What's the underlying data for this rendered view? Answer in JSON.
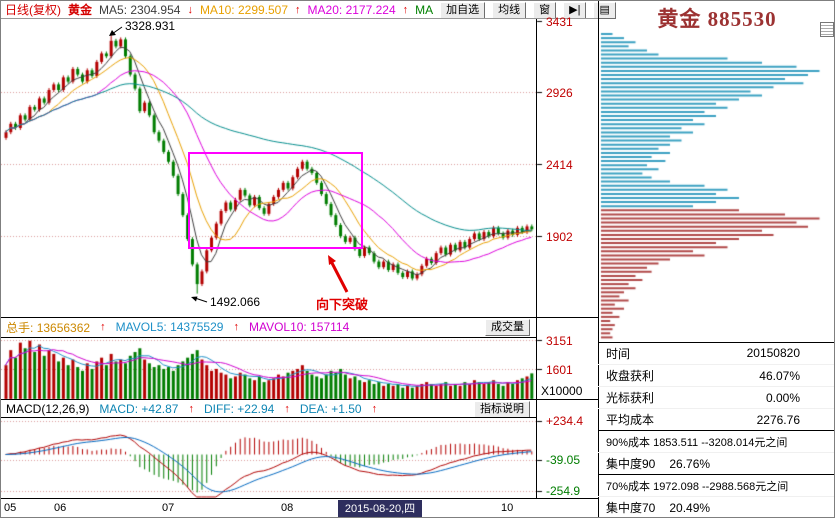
{
  "toolbar": {
    "period": "日线(复权)",
    "symbol": "黄金",
    "ma5_label": "MA5:",
    "ma5_value": "2304.954",
    "ma5_arrow": "↓",
    "ma10_label": "MA10:",
    "ma10_value": "2299.507",
    "ma10_arrow": "↑",
    "ma20_label": "MA20:",
    "ma20_value": "2177.224",
    "ma20_arrow": "↑",
    "ma_more": "MA",
    "btn_add": "加自选",
    "btn_ma": "均线",
    "btn_win": "窗",
    "btn_next": "▶|",
    "btn_grid": "▤"
  },
  "vol_header": {
    "zs_label": "总手:",
    "zs_value": "13656362",
    "zs_arrow": "↑",
    "mv5_label": "MAVOL5:",
    "mv5_value": "14375529",
    "mv5_arrow": "↑",
    "mv10_label": "MAVOL10:",
    "mv10_value": "157114",
    "pane_button": "成交量"
  },
  "macd_header": {
    "name": "MACD(12,26,9)",
    "m_label": "MACD:",
    "m_value": "+42.87",
    "m_arrow": "↑",
    "d_label": "DIFF:",
    "d_value": "+22.94",
    "d_arrow": "↑",
    "e_label": "DEA:",
    "e_value": "+1.50",
    "e_arrow": "↑",
    "help": "指标说明"
  },
  "axis": {
    "p1": "3431",
    "p2": "2926",
    "p3": "2414",
    "p4": "1902",
    "v1": "3151",
    "v2": "1601",
    "vunit": "X10000",
    "m1": "+234.4",
    "m2": "-39.05",
    "m3": "-254.9"
  },
  "xaxis": {
    "m05": "05",
    "m06": "06",
    "m07": "07",
    "m08": "08",
    "date": "2015-08-20,四",
    "m10": "10"
  },
  "annotations": {
    "peak": "3328.931",
    "trough": "1492.066",
    "break_text": "向下突破"
  },
  "right_panel": {
    "title": "黄金 885530",
    "rows": [
      {
        "label": "时间",
        "value": "20150820"
      },
      {
        "label": "收盘获利",
        "value": "46.07%"
      },
      {
        "label": "光标获利",
        "value": "0.00%"
      },
      {
        "label": "平均成本",
        "value": "2276.76"
      },
      {
        "label": "90%成本 1853.511 --3208.014元之间",
        "value": ""
      },
      {
        "label": "集中度90",
        "value": "26.76%"
      },
      {
        "label": "70%成本 1972.098 --2988.568元之间",
        "value": ""
      },
      {
        "label": "集中度70",
        "value": "20.49%"
      }
    ]
  },
  "chart_data": {
    "type": "candlestick",
    "title": "黄金 885530 日线(复权)",
    "x_months": [
      "05",
      "06",
      "07",
      "08",
      "09(2015-08-20)",
      "10"
    ],
    "price_axis": [
      3431,
      2926,
      2414,
      1902
    ],
    "vol_axis": [
      3151,
      1601
    ],
    "macd_axis": [
      234.4,
      -39.05,
      -254.9
    ],
    "first_open": 2600,
    "closes": [
      2640,
      2700,
      2670,
      2760,
      2730,
      2820,
      2800,
      2880,
      2850,
      2940,
      2980,
      2940,
      3030,
      3000,
      3090,
      3050,
      3000,
      3080,
      3040,
      3140,
      3200,
      3180,
      3290,
      3250,
      3300,
      3180,
      3050,
      2950,
      2790,
      2850,
      2760,
      2640,
      2580,
      2500,
      2430,
      2330,
      2200,
      2050,
      1880,
      1700,
      1560,
      1650,
      1800,
      1890,
      1990,
      2080,
      2140,
      2090,
      2160,
      2230,
      2190,
      2120,
      2180,
      2100,
      2060,
      2130,
      2180,
      2230,
      2280,
      2240,
      2320,
      2380,
      2430,
      2380,
      2350,
      2280,
      2200,
      2130,
      2050,
      1980,
      1900,
      1860,
      1890,
      1810,
      1760,
      1820,
      1780,
      1720,
      1680,
      1720,
      1660,
      1700,
      1640,
      1610,
      1650,
      1600,
      1630,
      1690,
      1740,
      1710,
      1780,
      1820,
      1770,
      1840,
      1800,
      1860,
      1820,
      1880,
      1920,
      1880,
      1930,
      1900,
      1960,
      1920,
      1890,
      1940,
      1910,
      1960,
      1930,
      1970,
      1950
    ],
    "volumes": [
      1800,
      2600,
      2200,
      3000,
      2700,
      3100,
      2500,
      2900,
      2300,
      2600,
      2400,
      2000,
      2200,
      1800,
      2100,
      1700,
      1500,
      1900,
      1600,
      2000,
      2200,
      1800,
      2400,
      2000,
      2100,
      1900,
      2300,
      2500,
      2700,
      2100,
      1900,
      1700,
      1800,
      1600,
      1700,
      1500,
      1800,
      2000,
      2200,
      2400,
      2600,
      2100,
      1800,
      1500,
      1600,
      1400,
      1300,
      1100,
      1200,
      1400,
      1300,
      1100,
      1000,
      1200,
      900,
      1000,
      1100,
      1300,
      1200,
      1400,
      1500,
      1600,
      1800,
      1500,
      1300,
      1200,
      1100,
      1300,
      1500,
      1400,
      1600,
      1300,
      1100,
      1200,
      1000,
      900,
      1000,
      800,
      900,
      700,
      800,
      700,
      800,
      600,
      700,
      600,
      700,
      800,
      900,
      800,
      700,
      800,
      900,
      700,
      800,
      700,
      900,
      800,
      1000,
      900,
      800,
      900,
      1000,
      800,
      700,
      900,
      800,
      1000,
      1100,
      1200,
      1365
    ],
    "peak_index": 22,
    "peak_high": 3328.931,
    "trough_index": 40,
    "trough_low": 1492.066,
    "ma_periods": [
      5,
      10,
      20,
      60
    ],
    "chip": {
      "split_index": 43,
      "rows": [
        0.05,
        0.1,
        0.15,
        0.12,
        0.2,
        0.25,
        0.55,
        0.7,
        0.85,
        0.95,
        0.9,
        0.8,
        0.88,
        0.75,
        0.65,
        0.7,
        0.6,
        0.5,
        0.55,
        0.45,
        0.5,
        0.4,
        0.45,
        0.35,
        0.4,
        0.3,
        0.35,
        0.3,
        0.25,
        0.3,
        0.22,
        0.28,
        0.2,
        0.25,
        0.18,
        0.22,
        0.3,
        0.45,
        0.55,
        0.5,
        0.6,
        0.5,
        0.4,
        0.6,
        0.8,
        0.95,
        0.85,
        0.9,
        0.7,
        0.75,
        0.6,
        0.5,
        0.55,
        0.4,
        0.45,
        0.3,
        0.25,
        0.2,
        0.22,
        0.15,
        0.18,
        0.12,
        0.15,
        0.1,
        0.08,
        0.12,
        0.06,
        0.1,
        0.05,
        0.08,
        0.04,
        0.06,
        0.05,
        0.04,
        0.05
      ]
    },
    "colors": {
      "up": "#b40000",
      "down": "#007d00",
      "ma5": "#3c3c3c",
      "ma10": "#e8a000",
      "ma20": "#dc00dc",
      "ma60": "#008c8c",
      "mavol5": "#1e90c8",
      "mavol10": "#d000d0",
      "diff": "#b00000",
      "dea": "#0068c0",
      "chip_above": "#3ba1c2",
      "chip_below": "#b04848",
      "grid": "#d89898",
      "box": "#ff00ff",
      "arrow": "#e00000"
    }
  }
}
